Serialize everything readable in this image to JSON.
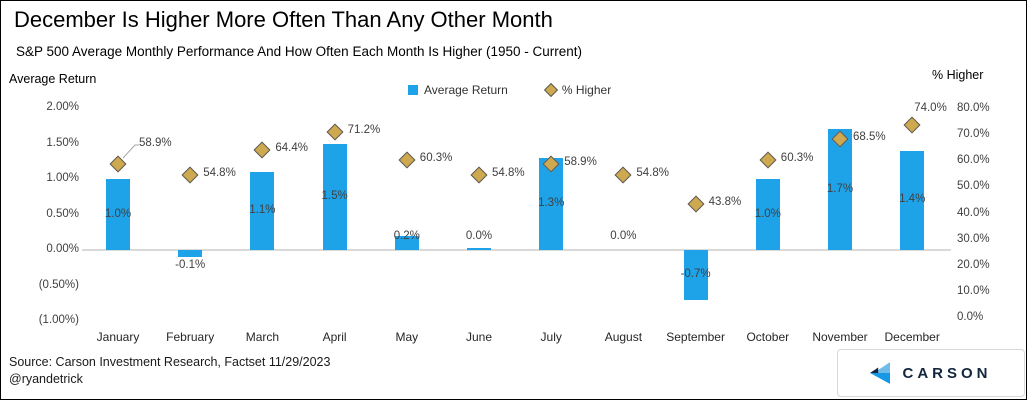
{
  "title": "December Is Higher More Often Than Any Other Month",
  "subtitle": "S&P 500 Average Monthly Performance And How Often Each Month Is Higher (1950 - Current)",
  "axes": {
    "left_title": "Average Return",
    "right_title": "% Higher",
    "left_ticks": [
      "2.00%",
      "1.50%",
      "1.00%",
      "0.50%",
      "0.00%",
      "(0.50%)",
      "(1.00%)"
    ],
    "right_ticks": [
      "80.0%",
      "70.0%",
      "60.0%",
      "50.0%",
      "40.0%",
      "30.0%",
      "20.0%",
      "10.0%",
      "0.0%"
    ]
  },
  "legend": {
    "items": [
      {
        "label": "Average Return",
        "marker": "square"
      },
      {
        "label": "% Higher",
        "marker": "diamond"
      }
    ]
  },
  "chart_data": {
    "type": "bar",
    "title": "December Is Higher More Often Than Any Other Month",
    "subtitle": "S&P 500 Average Monthly Performance And How Often Each Month Is Higher (1950 - Current)",
    "categories": [
      "January",
      "February",
      "March",
      "April",
      "May",
      "June",
      "July",
      "August",
      "September",
      "October",
      "November",
      "December"
    ],
    "series": [
      {
        "name": "Average Return",
        "type": "bar",
        "axis": "left",
        "values": [
          1.0,
          -0.1,
          1.1,
          1.5,
          0.2,
          0.03,
          1.3,
          0.0,
          -0.7,
          1.0,
          1.7,
          1.4
        ],
        "labels": [
          "1.0%",
          "-0.1%",
          "1.1%",
          "1.5%",
          "0.2%",
          "0.0%",
          "1.3%",
          "0.0%",
          "-0.7%",
          "1.0%",
          "1.7%",
          "1.4%"
        ]
      },
      {
        "name": "% Higher",
        "type": "scatter",
        "marker": "diamond",
        "axis": "right",
        "values": [
          58.9,
          54.8,
          64.4,
          71.2,
          60.3,
          54.8,
          58.9,
          54.8,
          43.8,
          60.3,
          68.5,
          74.0
        ],
        "labels": [
          "58.9%",
          "54.8%",
          "64.4%",
          "71.2%",
          "60.3%",
          "54.8%",
          "58.9%",
          "54.8%",
          "43.8%",
          "60.3%",
          "68.5%",
          "74.0%"
        ]
      }
    ],
    "left_axis": {
      "title": "Average Return",
      "range": [
        -1.0,
        2.0
      ],
      "tick_step": 0.5
    },
    "right_axis": {
      "title": "% Higher",
      "range": [
        0.0,
        80.0
      ],
      "tick_step": 10.0
    },
    "grid": "zero-line-only",
    "legend_position": "top-center"
  },
  "footer": {
    "source": "Source: Carson Investment Research, Factset 11/29/2023",
    "handle": "@ryandetrick",
    "brand": "CARSON"
  },
  "colors": {
    "bar": "#1EA2E8",
    "diamond_fill": "#CFA94F",
    "diamond_border": "#595959",
    "zero_line": "#D9D9D9",
    "label_text": "#404040",
    "brand_navy": "#12263F",
    "logo_light_blue": "#6FBCEA",
    "logo_bright_blue": "#1798E5"
  }
}
